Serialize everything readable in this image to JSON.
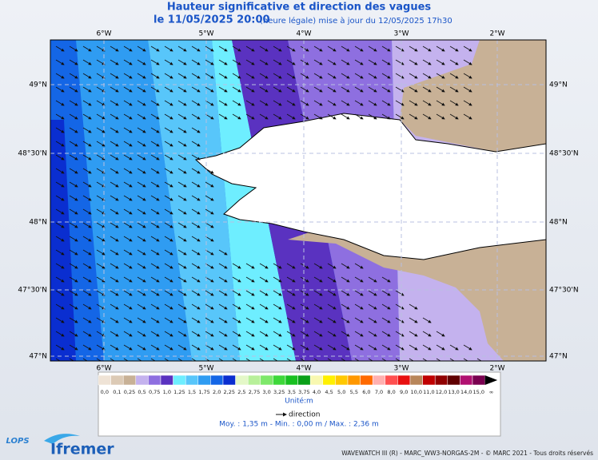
{
  "header": {
    "title": "Hauteur significative et direction des vagues",
    "date": "le 11/05/2025 20:00",
    "note": "(heure légale) mise à jour du 12/05/2025 17h30"
  },
  "map": {
    "longitudes": [
      "6°W",
      "5°W",
      "4°W",
      "3°W",
      "2°W"
    ],
    "latitudes": [
      "49°N",
      "48°30'N",
      "48°N",
      "47°30'N",
      "47°N"
    ]
  },
  "legend": {
    "items": [
      {
        "label": "0,0",
        "color": "#efe3d6"
      },
      {
        "label": "0,1",
        "color": "#dccab5"
      },
      {
        "label": "0,25",
        "color": "#c8b196"
      },
      {
        "label": "0,5",
        "color": "#c4b2ee"
      },
      {
        "label": "0,75",
        "color": "#8e6fe0"
      },
      {
        "label": "1,0",
        "color": "#5a32c0"
      },
      {
        "label": "1,25",
        "color": "#6eeeff"
      },
      {
        "label": "1,5",
        "color": "#58c6fa"
      },
      {
        "label": "1,75",
        "color": "#2f9cf2"
      },
      {
        "label": "2,0",
        "color": "#1466e6"
      },
      {
        "label": "2,25",
        "color": "#0a2ed0"
      },
      {
        "label": "2,5",
        "color": "#e4f8c8"
      },
      {
        "label": "2,75",
        "color": "#b8f09a"
      },
      {
        "label": "3,0",
        "color": "#7ee86a"
      },
      {
        "label": "3,25",
        "color": "#3ed83a"
      },
      {
        "label": "3,5",
        "color": "#18c020"
      },
      {
        "label": "3,75",
        "color": "#0aa018"
      },
      {
        "label": "4,0",
        "color": "#f8f8b0"
      },
      {
        "label": "4,5",
        "color": "#fff000"
      },
      {
        "label": "5,0",
        "color": "#ffc800"
      },
      {
        "label": "5,5",
        "color": "#ff9800"
      },
      {
        "label": "6,0",
        "color": "#ff6a00"
      },
      {
        "label": "7,0",
        "color": "#ffb0b0"
      },
      {
        "label": "8,0",
        "color": "#ff5050"
      },
      {
        "label": "9,0",
        "color": "#e81010"
      },
      {
        "label": "10,0",
        "color": "#b8865a"
      },
      {
        "label": "11,0",
        "color": "#c00000"
      },
      {
        "label": "12,0",
        "color": "#900000"
      },
      {
        "label": "13,0",
        "color": "#600000"
      },
      {
        "label": "14,0",
        "color": "#b01070"
      },
      {
        "label": "15,0",
        "color": "#7a0050"
      },
      {
        "label": "∞",
        "color": "#000000"
      }
    ],
    "unit": "Unité:m",
    "direction": "direction",
    "stats": "Moy. : 1,35 m  -  Min. : 0,00 m / Max. : 2,36 m"
  },
  "footer": {
    "lops": "LOPS",
    "brand": "Ifremer",
    "credit": "WAVEWATCH III (R) - MARC_WW3-NORGAS-2M - © MARC 2021 - Tous droits réservés"
  }
}
